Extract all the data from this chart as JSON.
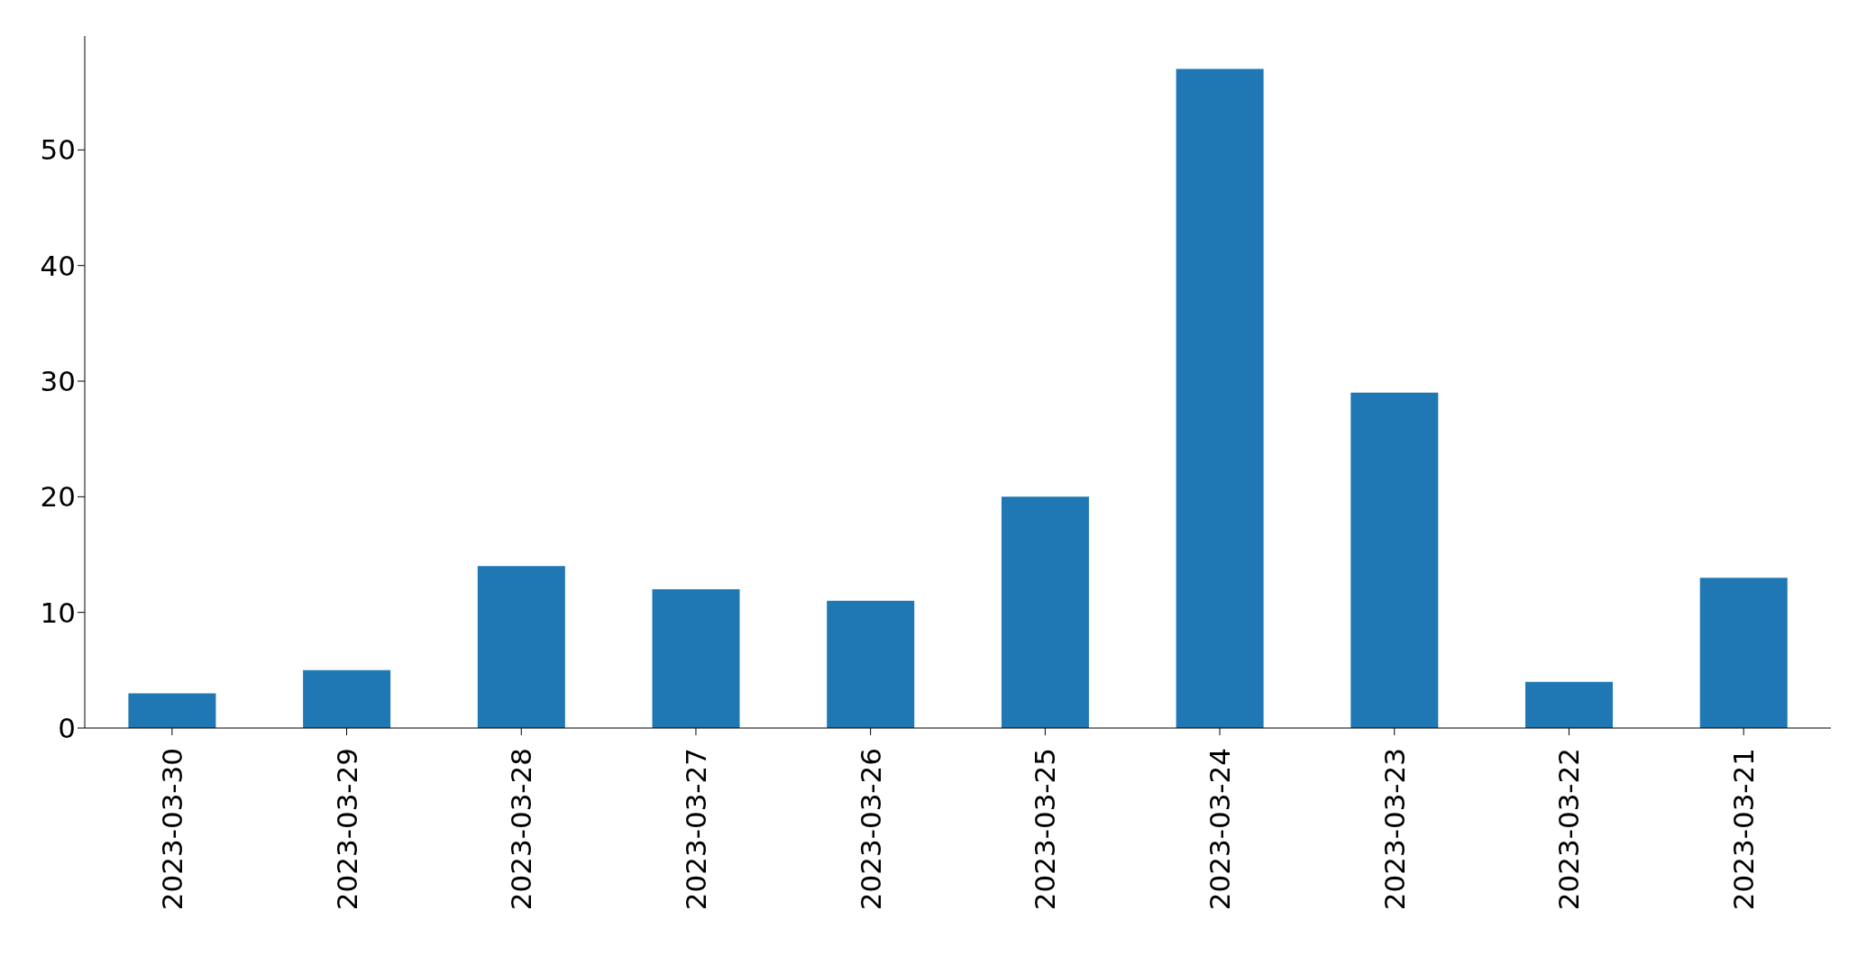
{
  "chart_data": {
    "type": "bar",
    "categories": [
      "2023-03-30",
      "2023-03-29",
      "2023-03-28",
      "2023-03-27",
      "2023-03-26",
      "2023-03-25",
      "2023-03-24",
      "2023-03-23",
      "2023-03-22",
      "2023-03-21"
    ],
    "values": [
      3,
      5,
      14,
      12,
      11,
      20,
      57,
      29,
      4,
      13
    ],
    "color": "#1f77b4",
    "ylim": [
      0,
      59.85
    ],
    "yticks": [
      0,
      10,
      20,
      30,
      40,
      50
    ],
    "grid": false,
    "legend": false
  }
}
